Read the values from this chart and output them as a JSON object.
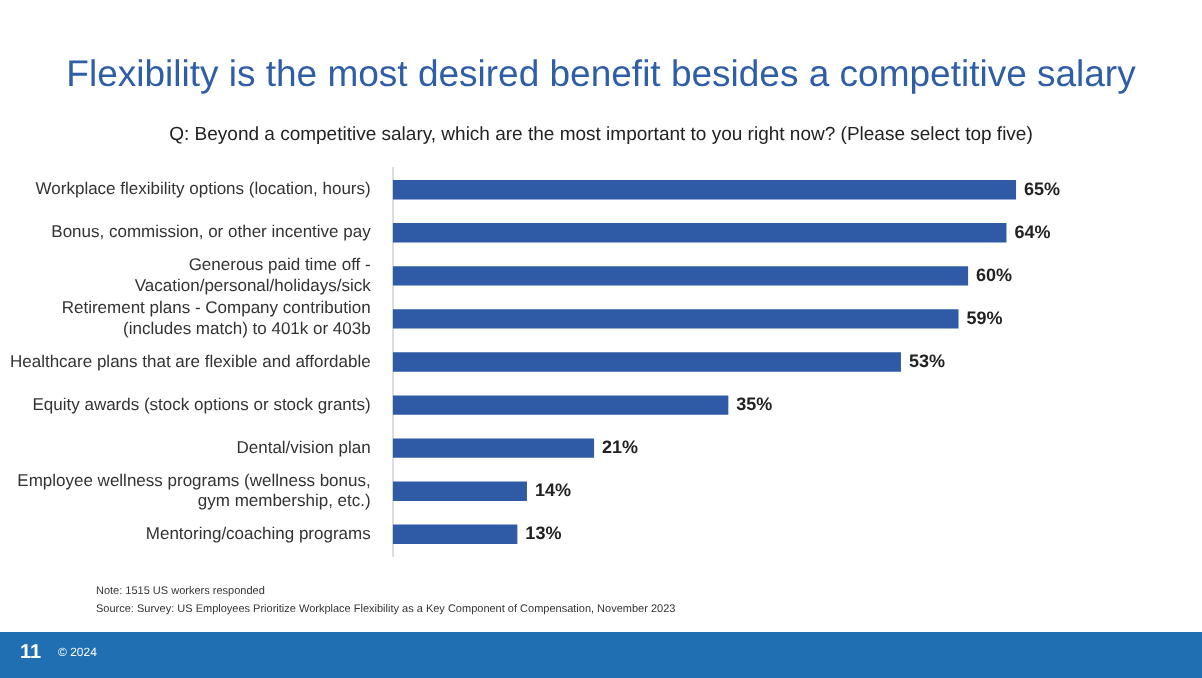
{
  "chart_data": {
    "type": "bar",
    "orientation": "horizontal",
    "title": "Flexibility is the most desired benefit besides a competitive salary",
    "subtitle": "Q: Beyond a competitive salary, which are the most important to you right now? (Please select top five)",
    "categories": [
      "Workplace flexibility options (location, hours)",
      "Bonus, commission, or other incentive pay",
      "Generous paid time off -\nVacation/personal/holidays/sick",
      "Retirement plans - Company contribution\n(includes match) to 401k or 403b",
      "Healthcare plans that are flexible and affordable",
      "Equity awards (stock options or stock grants)",
      "Dental/vision plan",
      "Employee wellness programs (wellness bonus,\ngym membership, etc.)",
      "Mentoring/coaching programs"
    ],
    "values": [
      65,
      64,
      60,
      59,
      53,
      35,
      21,
      14,
      13
    ],
    "value_labels": [
      "65%",
      "64%",
      "60%",
      "59%",
      "53%",
      "35%",
      "21%",
      "14%",
      "13%"
    ],
    "color": "#2f5aa6",
    "grid": false,
    "legend": false,
    "tick_labels": "y",
    "annotations": [
      "Note: 1515 US workers responded",
      "Source: Survey: US Employees Prioritize Workplace Flexibility as a Key Component of Compensation, November 2023",
      "11",
      "© 2024"
    ]
  }
}
